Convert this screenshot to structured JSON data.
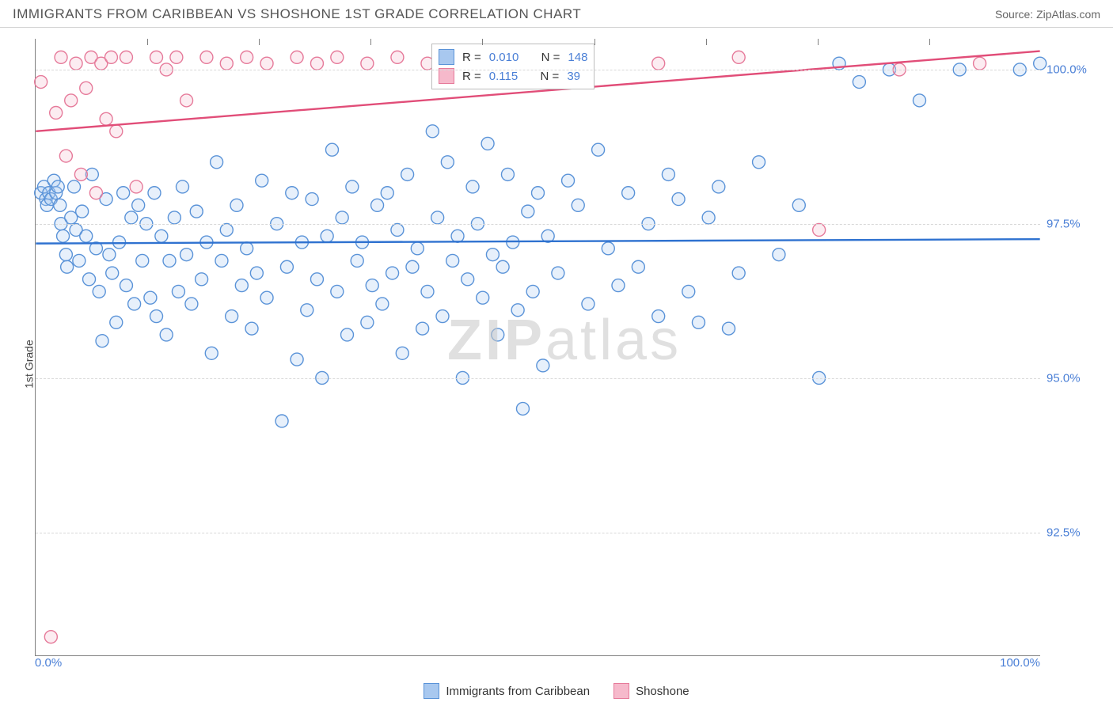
{
  "header": {
    "title": "IMMIGRANTS FROM CARIBBEAN VS SHOSHONE 1ST GRADE CORRELATION CHART",
    "source_prefix": "Source: ",
    "source_name": "ZipAtlas.com"
  },
  "chart": {
    "type": "scatter",
    "ylabel": "1st Grade",
    "xlim": [
      0,
      100
    ],
    "ylim": [
      90.5,
      100.5
    ],
    "xtick_labels": [
      "0.0%",
      "100.0%"
    ],
    "xtick_minor_count": 8,
    "yticks": [
      {
        "v": 92.5,
        "label": "92.5%"
      },
      {
        "v": 95.0,
        "label": "95.0%"
      },
      {
        "v": 97.5,
        "label": "97.5%"
      },
      {
        "v": 100.0,
        "label": "100.0%"
      }
    ],
    "background_color": "#ffffff",
    "grid_color": "#d8d8d8",
    "axis_color": "#808080",
    "ytick_color": "#4a7fd6",
    "xtick_color": "#4a7fd6",
    "marker_radius": 8,
    "marker_stroke_width": 1.4,
    "marker_fill_opacity": 0.28,
    "trend_line_width": 2.4,
    "watermark": {
      "text_bold": "ZIP",
      "text_light": "atlas",
      "color": "#c8c8c8"
    },
    "series": [
      {
        "id": "caribbean",
        "name": "Immigrants from Caribbean",
        "color_stroke": "#5a93d8",
        "color_fill": "#a8c8ef",
        "trend_color": "#2f72d0",
        "R": "0.010",
        "N": "148",
        "trend": {
          "y_at_x0": 97.18,
          "y_at_x100": 97.25
        },
        "points": [
          [
            0.5,
            98.0
          ],
          [
            0.8,
            98.1
          ],
          [
            1.0,
            97.9
          ],
          [
            1.1,
            97.8
          ],
          [
            1.3,
            98.0
          ],
          [
            1.5,
            97.9
          ],
          [
            1.8,
            98.2
          ],
          [
            2.0,
            98.0
          ],
          [
            2.2,
            98.1
          ],
          [
            2.4,
            97.8
          ],
          [
            2.5,
            97.5
          ],
          [
            2.7,
            97.3
          ],
          [
            3.0,
            97.0
          ],
          [
            3.1,
            96.8
          ],
          [
            3.5,
            97.6
          ],
          [
            3.8,
            98.1
          ],
          [
            4.0,
            97.4
          ],
          [
            4.3,
            96.9
          ],
          [
            4.6,
            97.7
          ],
          [
            5.0,
            97.3
          ],
          [
            5.3,
            96.6
          ],
          [
            5.6,
            98.3
          ],
          [
            6.0,
            97.1
          ],
          [
            6.3,
            96.4
          ],
          [
            6.6,
            95.6
          ],
          [
            7.0,
            97.9
          ],
          [
            7.3,
            97.0
          ],
          [
            7.6,
            96.7
          ],
          [
            8.0,
            95.9
          ],
          [
            8.3,
            97.2
          ],
          [
            8.7,
            98.0
          ],
          [
            9.0,
            96.5
          ],
          [
            9.5,
            97.6
          ],
          [
            9.8,
            96.2
          ],
          [
            10.2,
            97.8
          ],
          [
            10.6,
            96.9
          ],
          [
            11.0,
            97.5
          ],
          [
            11.4,
            96.3
          ],
          [
            11.8,
            98.0
          ],
          [
            12.0,
            96.0
          ],
          [
            12.5,
            97.3
          ],
          [
            13.0,
            95.7
          ],
          [
            13.3,
            96.9
          ],
          [
            13.8,
            97.6
          ],
          [
            14.2,
            96.4
          ],
          [
            14.6,
            98.1
          ],
          [
            15.0,
            97.0
          ],
          [
            15.5,
            96.2
          ],
          [
            16.0,
            97.7
          ],
          [
            16.5,
            96.6
          ],
          [
            17.0,
            97.2
          ],
          [
            17.5,
            95.4
          ],
          [
            18.0,
            98.5
          ],
          [
            18.5,
            96.9
          ],
          [
            19.0,
            97.4
          ],
          [
            19.5,
            96.0
          ],
          [
            20.0,
            97.8
          ],
          [
            20.5,
            96.5
          ],
          [
            21.0,
            97.1
          ],
          [
            21.5,
            95.8
          ],
          [
            22.0,
            96.7
          ],
          [
            22.5,
            98.2
          ],
          [
            23.0,
            96.3
          ],
          [
            24.0,
            97.5
          ],
          [
            24.5,
            94.3
          ],
          [
            25.0,
            96.8
          ],
          [
            25.5,
            98.0
          ],
          [
            26.0,
            95.3
          ],
          [
            26.5,
            97.2
          ],
          [
            27.0,
            96.1
          ],
          [
            27.5,
            97.9
          ],
          [
            28.0,
            96.6
          ],
          [
            28.5,
            95.0
          ],
          [
            29.0,
            97.3
          ],
          [
            29.5,
            98.7
          ],
          [
            30.0,
            96.4
          ],
          [
            30.5,
            97.6
          ],
          [
            31.0,
            95.7
          ],
          [
            31.5,
            98.1
          ],
          [
            32.0,
            96.9
          ],
          [
            32.5,
            97.2
          ],
          [
            33.0,
            95.9
          ],
          [
            33.5,
            96.5
          ],
          [
            34.0,
            97.8
          ],
          [
            34.5,
            96.2
          ],
          [
            35.0,
            98.0
          ],
          [
            35.5,
            96.7
          ],
          [
            36.0,
            97.4
          ],
          [
            36.5,
            95.4
          ],
          [
            37.0,
            98.3
          ],
          [
            37.5,
            96.8
          ],
          [
            38.0,
            97.1
          ],
          [
            38.5,
            95.8
          ],
          [
            39.0,
            96.4
          ],
          [
            39.5,
            99.0
          ],
          [
            40.0,
            97.6
          ],
          [
            40.5,
            96.0
          ],
          [
            41.0,
            98.5
          ],
          [
            41.5,
            96.9
          ],
          [
            42.0,
            97.3
          ],
          [
            42.5,
            95.0
          ],
          [
            43.0,
            96.6
          ],
          [
            43.5,
            98.1
          ],
          [
            44.0,
            97.5
          ],
          [
            44.5,
            96.3
          ],
          [
            45.0,
            98.8
          ],
          [
            45.5,
            97.0
          ],
          [
            46.0,
            95.7
          ],
          [
            46.5,
            96.8
          ],
          [
            47.0,
            98.3
          ],
          [
            47.5,
            97.2
          ],
          [
            48.0,
            96.1
          ],
          [
            48.5,
            94.5
          ],
          [
            49.0,
            97.7
          ],
          [
            49.5,
            96.4
          ],
          [
            50.0,
            98.0
          ],
          [
            50.5,
            95.2
          ],
          [
            51.0,
            97.3
          ],
          [
            52.0,
            96.7
          ],
          [
            53.0,
            98.2
          ],
          [
            54.0,
            97.8
          ],
          [
            55.0,
            96.2
          ],
          [
            56.0,
            98.7
          ],
          [
            57.0,
            97.1
          ],
          [
            58.0,
            96.5
          ],
          [
            59.0,
            98.0
          ],
          [
            60.0,
            96.8
          ],
          [
            61.0,
            97.5
          ],
          [
            62.0,
            96.0
          ],
          [
            63.0,
            98.3
          ],
          [
            64.0,
            97.9
          ],
          [
            65.0,
            96.4
          ],
          [
            66.0,
            95.9
          ],
          [
            67.0,
            97.6
          ],
          [
            68.0,
            98.1
          ],
          [
            69.0,
            95.8
          ],
          [
            70.0,
            96.7
          ],
          [
            72.0,
            98.5
          ],
          [
            74.0,
            97.0
          ],
          [
            76.0,
            97.8
          ],
          [
            78.0,
            95.0
          ],
          [
            80.0,
            100.1
          ],
          [
            82.0,
            99.8
          ],
          [
            85.0,
            100.0
          ],
          [
            88.0,
            99.5
          ],
          [
            92.0,
            100.0
          ],
          [
            98.0,
            100.0
          ],
          [
            100.0,
            100.1
          ]
        ]
      },
      {
        "id": "shoshone",
        "name": "Shoshone",
        "color_stroke": "#e67a9a",
        "color_fill": "#f6b9cb",
        "trend_color": "#e14d78",
        "R": "0.115",
        "N": "39",
        "trend": {
          "y_at_x0": 99.0,
          "y_at_x100": 100.3
        },
        "points": [
          [
            0.5,
            99.8
          ],
          [
            1.5,
            90.8
          ],
          [
            2.0,
            99.3
          ],
          [
            2.5,
            100.2
          ],
          [
            3.0,
            98.6
          ],
          [
            3.5,
            99.5
          ],
          [
            4.0,
            100.1
          ],
          [
            4.5,
            98.3
          ],
          [
            5.0,
            99.7
          ],
          [
            5.5,
            100.2
          ],
          [
            6.0,
            98.0
          ],
          [
            6.5,
            100.1
          ],
          [
            7.0,
            99.2
          ],
          [
            7.5,
            100.2
          ],
          [
            8.0,
            99.0
          ],
          [
            9.0,
            100.2
          ],
          [
            10.0,
            98.1
          ],
          [
            12.0,
            100.2
          ],
          [
            13.0,
            100.0
          ],
          [
            14.0,
            100.2
          ],
          [
            15.0,
            99.5
          ],
          [
            17.0,
            100.2
          ],
          [
            19.0,
            100.1
          ],
          [
            21.0,
            100.2
          ],
          [
            23.0,
            100.1
          ],
          [
            26.0,
            100.2
          ],
          [
            28.0,
            100.1
          ],
          [
            30.0,
            100.2
          ],
          [
            33.0,
            100.1
          ],
          [
            36.0,
            100.2
          ],
          [
            39.0,
            100.1
          ],
          [
            42.0,
            100.2
          ],
          [
            48.0,
            100.1
          ],
          [
            54.0,
            100.2
          ],
          [
            62.0,
            100.1
          ],
          [
            70.0,
            100.2
          ],
          [
            78.0,
            97.4
          ],
          [
            86.0,
            100.0
          ],
          [
            94.0,
            100.1
          ]
        ]
      }
    ],
    "legend_top": {
      "R_label": "R =",
      "N_label": "N ="
    },
    "legend_bottom_labels": [
      "Immigrants from Caribbean",
      "Shoshone"
    ]
  }
}
